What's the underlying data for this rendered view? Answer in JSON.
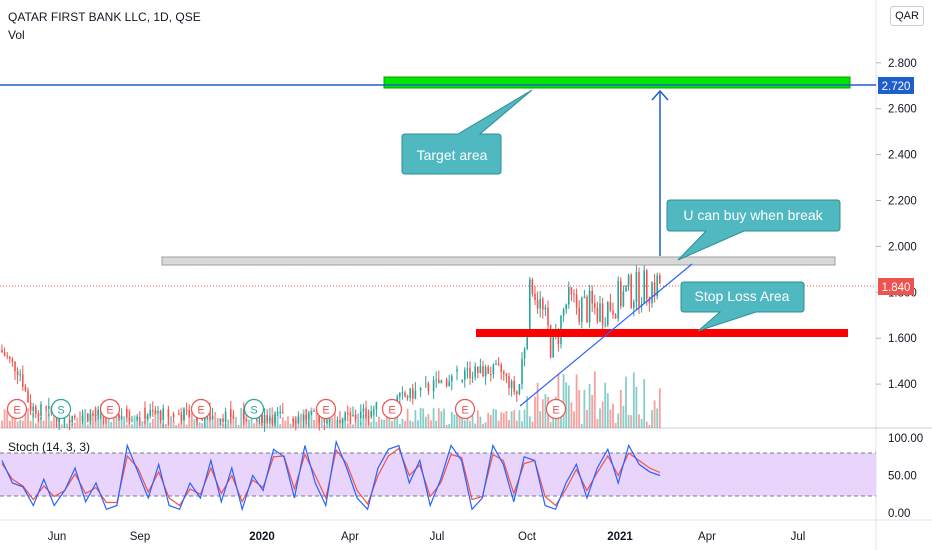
{
  "header": {
    "symbol_line": "QATAR FIRST BANK LLC, 1D, QSE",
    "volume_label": "Vol",
    "currency_badge": "QAR"
  },
  "stoch_label": "Stoch (14, 3, 3)",
  "colors": {
    "candle_up": "#26a69a",
    "candle_down": "#ef5350",
    "target_box": "#00e600",
    "stop_box": "#ff0000",
    "resistance_box": "#d9d9d9",
    "callout": "#4fb8c0",
    "target_line": "#1f5fcc",
    "price_line": "#ef5350",
    "stoch_k": "#2962ff",
    "stoch_d": "#ef5350",
    "stoch_band": "#e9d5fb"
  },
  "annotations": {
    "target": "Target area",
    "buy": "U can buy when break",
    "stop": "Stop Loss Area"
  },
  "event_markers": [
    "E",
    "S",
    "E",
    "E",
    "S",
    "E",
    "E",
    "E",
    "E"
  ],
  "chart_data": {
    "type": "candlestick",
    "title": "QATAR FIRST BANK LLC, 1D, QSE",
    "y_axis": {
      "ticks": [
        "2.800",
        "2.600",
        "2.400",
        "2.200",
        "2.000",
        "1.800",
        "1.600",
        "1.400"
      ],
      "range": [
        1.2,
        2.86
      ]
    },
    "x_axis": {
      "ticks": [
        "Jun",
        "Sep",
        "2020",
        "Apr",
        "Jul",
        "Oct",
        "2021",
        "Apr",
        "Jul"
      ]
    },
    "current_price": {
      "label": "1.840",
      "value": 1.84
    },
    "target_price": {
      "label": "2.720",
      "value": 2.72
    },
    "levels": {
      "target_zone": [
        2.7,
        2.75
      ],
      "resistance_zone": [
        1.94,
        1.97
      ],
      "stop_loss_zone": [
        1.63,
        1.67
      ]
    },
    "price_series": [
      [
        "May-2019",
        1.55
      ],
      [
        "Jun-2019",
        1.3
      ],
      [
        "Jul-2019",
        1.25
      ],
      [
        "Sep-2019",
        1.26
      ],
      [
        "Nov-2019",
        1.27
      ],
      [
        "2020",
        1.26
      ],
      [
        "Mar-2020",
        1.25
      ],
      [
        "Jul-2020",
        1.45
      ],
      [
        "Aug-2020",
        1.46
      ],
      [
        "Sep-2020",
        1.35
      ],
      [
        "Oct-2020",
        1.86
      ],
      [
        "Nov-2020",
        1.55
      ],
      [
        "Nov-2020",
        1.75
      ],
      [
        "Dec-2020",
        1.72
      ],
      [
        "2021",
        1.8
      ],
      [
        "Feb-2021",
        1.84
      ]
    ],
    "stochastic": {
      "ticks": [
        "100.00",
        "50.00",
        "0.00"
      ],
      "bands": [
        80,
        20
      ],
      "k": [
        70,
        40,
        35,
        10,
        45,
        10,
        30,
        60,
        15,
        40,
        5,
        10,
        90,
        55,
        20,
        65,
        10,
        5,
        40,
        20,
        70,
        15,
        60,
        5,
        50,
        30,
        85,
        75,
        20,
        90,
        40,
        10,
        95,
        60,
        20,
        5,
        60,
        85,
        90,
        40,
        70,
        10,
        45,
        90,
        70,
        5,
        20,
        90,
        65,
        15,
        75,
        70,
        10,
        5,
        40,
        65,
        20,
        60,
        85,
        40,
        90,
        65,
        55,
        50
      ],
      "d": [
        66,
        45,
        36,
        18,
        36,
        22,
        30,
        52,
        26,
        34,
        14,
        14,
        76,
        60,
        28,
        55,
        20,
        10,
        32,
        25,
        60,
        26,
        50,
        15,
        44,
        34,
        75,
        76,
        32,
        78,
        50,
        20,
        84,
        66,
        30,
        12,
        50,
        76,
        86,
        50,
        64,
        22,
        40,
        78,
        74,
        18,
        22,
        78,
        70,
        26,
        66,
        70,
        22,
        10,
        32,
        58,
        30,
        54,
        76,
        50,
        80,
        70,
        60,
        54
      ]
    }
  }
}
